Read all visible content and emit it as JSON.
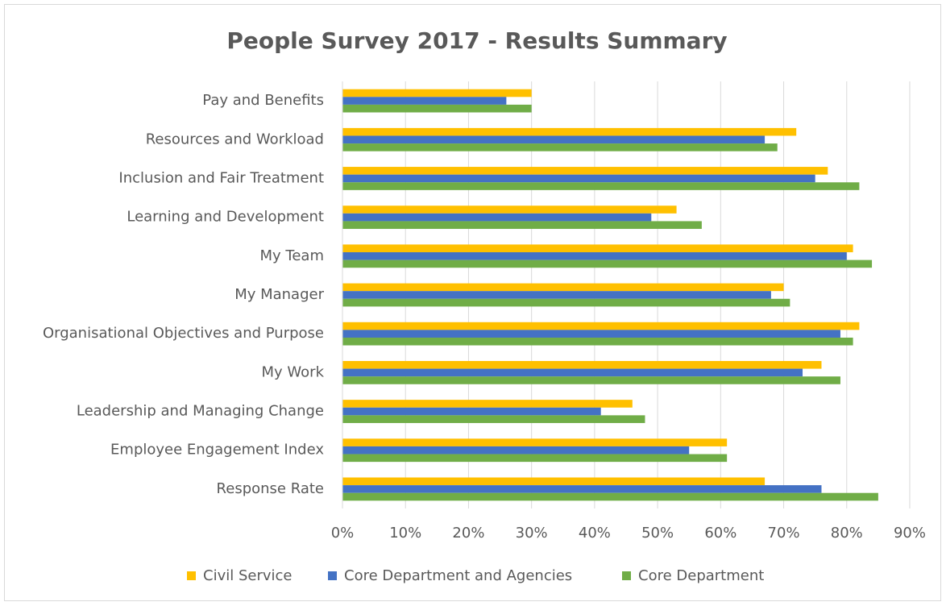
{
  "chart_data": {
    "type": "bar",
    "orientation": "horizontal",
    "title": "People Survey 2017 - Results Summary",
    "categories": [
      "Pay and Benefits",
      "Resources and Workload",
      "Inclusion and Fair Treatment",
      "Learning and Development",
      "My Team",
      "My Manager",
      "Organisational Objectives and Purpose",
      "My Work",
      "Leadership and Managing Change",
      "Employee Engagement Index",
      "Response Rate"
    ],
    "series": [
      {
        "name": "Civil Service",
        "color": "#ffc000",
        "values": [
          30,
          72,
          77,
          53,
          81,
          70,
          82,
          76,
          46,
          61,
          67
        ]
      },
      {
        "name": "Core Department and Agencies",
        "color": "#4472c4",
        "values": [
          26,
          67,
          75,
          49,
          80,
          68,
          79,
          73,
          41,
          55,
          76
        ]
      },
      {
        "name": "Core Department",
        "color": "#70ad47",
        "values": [
          30,
          69,
          82,
          57,
          84,
          71,
          81,
          79,
          48,
          61,
          85
        ]
      }
    ],
    "xlim": [
      0,
      90
    ],
    "xticks": [
      {
        "value": 0,
        "label": "0%"
      },
      {
        "value": 10,
        "label": "10%"
      },
      {
        "value": 20,
        "label": "20%"
      },
      {
        "value": 30,
        "label": "30%"
      },
      {
        "value": 40,
        "label": "40%"
      },
      {
        "value": 50,
        "label": "50%"
      },
      {
        "value": 60,
        "label": "60%"
      },
      {
        "value": 70,
        "label": "70%"
      },
      {
        "value": 80,
        "label": "80%"
      },
      {
        "value": 90,
        "label": "90%"
      }
    ],
    "grid": true,
    "legend": "bottom"
  }
}
